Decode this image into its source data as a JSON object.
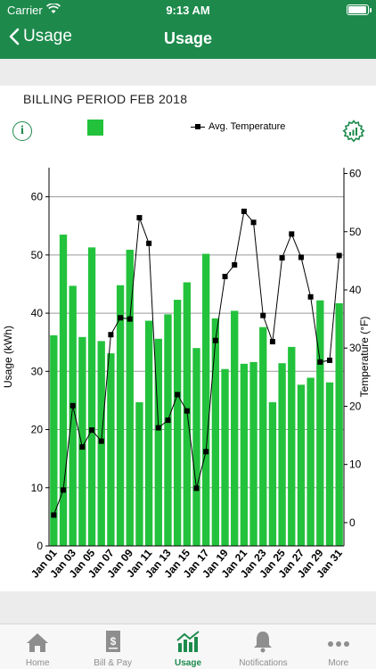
{
  "status_bar": {
    "carrier": "Carrier",
    "time": "9:13 AM"
  },
  "nav": {
    "back_label": "Usage",
    "title": "Usage"
  },
  "billing_period": "BILLING PERIOD FEB 2018",
  "legend": {
    "temperature_label": "Avg. Temperature"
  },
  "colors": {
    "brand": "#1d8a4c",
    "bar": "#23c23c"
  },
  "chart_data": {
    "type": "bar",
    "categories": [
      "Jan 01",
      "Jan 02",
      "Jan 03",
      "Jan 04",
      "Jan 05",
      "Jan 06",
      "Jan 07",
      "Jan 08",
      "Jan 09",
      "Jan 10",
      "Jan 11",
      "Jan 12",
      "Jan 13",
      "Jan 14",
      "Jan 15",
      "Jan 16",
      "Jan 17",
      "Jan 18",
      "Jan 19",
      "Jan 20",
      "Jan 21",
      "Jan 22",
      "Jan 23",
      "Jan 24",
      "Jan 25",
      "Jan 26",
      "Jan 27",
      "Jan 28",
      "Jan 29",
      "Jan 30",
      "Jan 31"
    ],
    "x_tick_labels": [
      "Jan 01",
      "Jan 03",
      "Jan 05",
      "Jan 07",
      "Jan 09",
      "Jan 11",
      "Jan 13",
      "Jan 15",
      "Jan 17",
      "Jan 19",
      "Jan 21",
      "Jan 23",
      "Jan 25",
      "Jan 27",
      "Jan 29",
      "Jan 31"
    ],
    "series": [
      {
        "name": "",
        "type": "bar",
        "axis": "left",
        "values": [
          36.2,
          53.5,
          44.7,
          35.9,
          51.3,
          35.2,
          33.1,
          44.8,
          50.9,
          24.7,
          38.7,
          35.6,
          39.8,
          42.3,
          45.3,
          34.0,
          50.2,
          39.1,
          30.4,
          40.4,
          31.3,
          31.6,
          37.6,
          24.7,
          31.4,
          34.2,
          27.7,
          28.9,
          42.2,
          28.1,
          41.7
        ]
      },
      {
        "name": "Avg. Temperature",
        "type": "line",
        "axis": "right",
        "values": [
          1.3,
          5.6,
          20.1,
          13.0,
          15.9,
          14.0,
          32.3,
          35.2,
          35.0,
          52.4,
          48.0,
          16.3,
          17.6,
          22.0,
          19.2,
          5.9,
          12.2,
          31.3,
          42.3,
          44.3,
          53.5,
          51.6,
          35.6,
          31.1,
          45.5,
          49.6,
          45.6,
          38.8,
          27.6,
          27.9,
          45.9
        ]
      }
    ],
    "ylabel": "Usage (kWh)",
    "y2label": "Temperature (°F)",
    "ylim": [
      0,
      65
    ],
    "y_ticks": [
      0,
      10,
      20,
      30,
      40,
      50,
      60
    ],
    "y2lim": [
      -4,
      61
    ],
    "y2_ticks": [
      0,
      10,
      20,
      30,
      40,
      50,
      60
    ],
    "grid": true
  },
  "tabs": [
    {
      "label": "Home",
      "icon": "home-icon"
    },
    {
      "label": "Bill & Pay",
      "icon": "bill-icon"
    },
    {
      "label": "Usage",
      "icon": "usage-chart-icon",
      "active": true
    },
    {
      "label": "Notifications",
      "icon": "bell-icon"
    },
    {
      "label": "More",
      "icon": "more-dots-icon"
    }
  ]
}
